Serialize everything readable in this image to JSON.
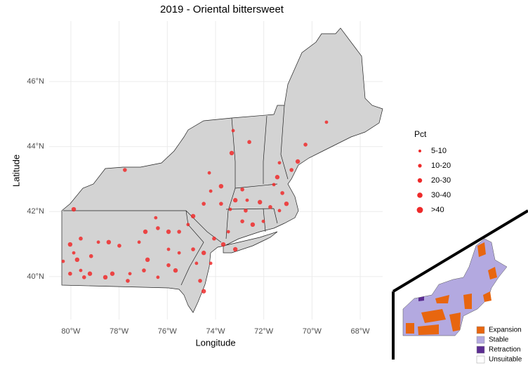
{
  "chart_data": {
    "type": "point-map",
    "title": "2019 - Oriental bittersweet",
    "x_label": "Longitude",
    "y_label": "Latitude",
    "xlim": [
      -80.9,
      -67.07
    ],
    "ylim": [
      38.68,
      47.86
    ],
    "xticks": [
      {
        "value": -80,
        "label": "80°W"
      },
      {
        "value": -78,
        "label": "78°W"
      },
      {
        "value": -76,
        "label": "76°W"
      },
      {
        "value": -74,
        "label": "74°W"
      },
      {
        "value": -72,
        "label": "72°W"
      },
      {
        "value": -70,
        "label": "70°W"
      },
      {
        "value": -68,
        "label": "68°W"
      }
    ],
    "yticks": [
      {
        "value": 40,
        "label": "40°N"
      },
      {
        "value": 42,
        "label": "42°N"
      },
      {
        "value": 44,
        "label": "44°N"
      },
      {
        "value": 46,
        "label": "46°N"
      }
    ],
    "grid": true,
    "color": "#ee2a2a",
    "points": {
      "lon": [
        -73.27,
        -72.6,
        -73.33,
        -74.26,
        -77.76,
        -79.88,
        -69.4,
        -70.27,
        -70.59,
        -71.35,
        -70.85,
        -71.44,
        -71.58,
        -71.23,
        -71.06,
        -71.35,
        -71.73,
        -72.16,
        -72.69,
        -72.89,
        -73.18,
        -73.39,
        -73.77,
        -73.77,
        -74.2,
        -74.49,
        -74.93,
        -75.14,
        -75.51,
        -75.95,
        -76.48,
        -76.39,
        -76.91,
        -77.17,
        -77.99,
        -78.43,
        -78.86,
        -79.59,
        -80.03,
        -80.32,
        -80.03,
        -79.74,
        -79.59,
        -79.45,
        -79.21,
        -79.88,
        -79.16,
        -78.28,
        -77.55,
        -76.97,
        -76.82,
        -76.39,
        -75.95,
        -75.66,
        -75.51,
        -74.93,
        -74.49,
        -74.79,
        -74.64,
        -74.49,
        -74.2,
        -74.06,
        -73.68,
        -73.47,
        -72.89,
        -72.46,
        -72.02,
        -72.75,
        -73.18,
        -75.95,
        -77.64,
        -78.57
      ],
      "lat": [
        44.49,
        44.14,
        43.8,
        43.19,
        43.28,
        42.07,
        44.75,
        44.06,
        43.54,
        43.5,
        43.28,
        43.06,
        42.83,
        42.57,
        42.24,
        42.03,
        42.14,
        42.29,
        42.35,
        42.68,
        42.35,
        42.07,
        42.24,
        42.78,
        42.63,
        42.24,
        41.86,
        41.6,
        41.38,
        41.38,
        41.81,
        41.49,
        41.38,
        41.06,
        40.95,
        41.06,
        41.06,
        41.17,
        40.99,
        40.47,
        40.09,
        40.52,
        40.19,
        39.98,
        40.09,
        40.73,
        40.63,
        40.09,
        40.09,
        40.19,
        40.52,
        39.98,
        40.35,
        40.19,
        40.73,
        40.84,
        40.73,
        40.41,
        39.87,
        39.55,
        40.41,
        41.17,
        40.99,
        41.38,
        41.7,
        41.6,
        41.7,
        42.03,
        40.84,
        40.84,
        39.87,
        39.98
      ]
    },
    "legend": {
      "title": "Pct",
      "entries": [
        "5-10",
        "10-20",
        "20-30",
        "30-40",
        ">40"
      ]
    },
    "inset_legend": [
      {
        "name": "Expansion",
        "color": "#e8660f"
      },
      {
        "name": "Stable",
        "color": "#b3a9e0"
      },
      {
        "name": "Retraction",
        "color": "#5b2c91"
      },
      {
        "name": "Unsuitable",
        "color": "#ffffff"
      }
    ]
  }
}
